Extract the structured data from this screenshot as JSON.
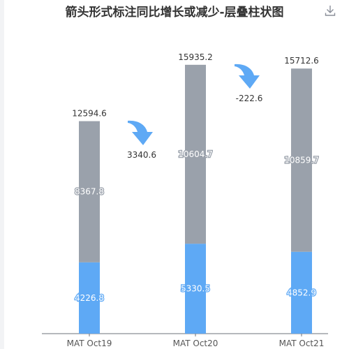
{
  "chart_data": {
    "type": "bar",
    "stacked": true,
    "title": "箭头形式标注同比增长或减少-层叠柱状图",
    "categories": [
      "MAT Oct19",
      "MAT Oct20",
      "MAT Oct21"
    ],
    "series": [
      {
        "values": [
          4226.8,
          5330.5,
          4852.9
        ],
        "color": "#5ea9f5"
      },
      {
        "values": [
          8367.8,
          10604.7,
          10859.7
        ],
        "color": "#9aa1ab"
      }
    ],
    "totals": [
      "12594.6",
      "15935.2",
      "15712.6"
    ],
    "changes": [
      "3340.6",
      "-222.6"
    ],
    "arrow_color": "#5ea9f5",
    "ylim": [
      0,
      17500
    ],
    "grid": false,
    "legend": "none"
  },
  "toolbar": {
    "download_icon": "download-icon"
  }
}
